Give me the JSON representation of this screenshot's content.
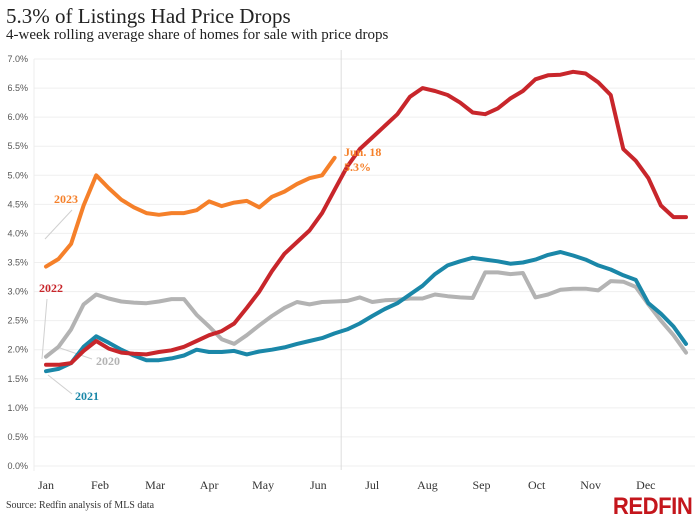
{
  "header": {
    "title": "5.3% of Listings Had Price Drops",
    "subtitle": "4-week rolling average share of homes for sale with price drops"
  },
  "footer": {
    "source": "Source: Redfin analysis of MLS data",
    "logo": "REDFIN"
  },
  "chart_data": {
    "type": "line",
    "title": "5.3% of Listings Had Price Drops",
    "subtitle": "4-week rolling average share of homes for sale with price drops",
    "xlabel": "",
    "ylabel": "",
    "x_unit": "week of year",
    "xlim": [
      0,
      51
    ],
    "ylim": [
      0,
      7
    ],
    "grid": true,
    "y_ticks": [
      0,
      0.5,
      1,
      1.5,
      2,
      2.5,
      3,
      3.5,
      4,
      4.5,
      5,
      5.5,
      6,
      6.5,
      7
    ],
    "y_tick_labels": [
      "0.0%",
      "0.5%",
      "1.0%",
      "1.5%",
      "2.0%",
      "2.5%",
      "3.0%",
      "3.5%",
      "4.0%",
      "4.5%",
      "5.0%",
      "5.5%",
      "6.0%",
      "6.5%",
      "7.0%"
    ],
    "x_ticks": [
      0,
      4.3,
      8.7,
      13,
      17.3,
      21.7,
      26,
      30.4,
      34.7,
      39.1,
      43.4,
      47.8
    ],
    "x_tick_labels": [
      "Jan",
      "Feb",
      "Mar",
      "Apr",
      "May",
      "Jun",
      "Jul",
      "Aug",
      "Sep",
      "Oct",
      "Nov",
      "Dec"
    ],
    "reference_line": {
      "x": 24,
      "label": "Jun. 18"
    },
    "annotation": {
      "series": "2023",
      "x": 23.5,
      "lines": [
        "Jun. 18",
        "5.3%"
      ]
    },
    "legend": "inline-labels",
    "series": [
      {
        "name": "2020",
        "color": "#b3b3b3",
        "label_pos": "left-middle",
        "x": [
          0,
          1,
          2,
          3,
          4,
          5,
          6,
          7,
          8,
          9,
          10,
          11,
          12,
          13,
          14,
          15,
          16,
          17,
          18,
          19,
          20,
          21,
          22,
          23,
          24,
          25,
          26,
          27,
          28,
          29,
          30,
          31,
          32,
          33,
          34,
          35,
          36,
          37,
          38,
          39,
          40,
          41,
          42,
          43,
          44,
          45,
          46,
          47,
          48,
          49,
          50,
          51
        ],
        "values": [
          1.88,
          2.05,
          2.35,
          2.78,
          2.95,
          2.88,
          2.83,
          2.81,
          2.8,
          2.83,
          2.87,
          2.87,
          2.6,
          2.4,
          2.18,
          2.1,
          2.25,
          2.42,
          2.58,
          2.72,
          2.82,
          2.78,
          2.82,
          2.83,
          2.84,
          2.9,
          2.82,
          2.85,
          2.86,
          2.88,
          2.88,
          2.95,
          2.92,
          2.9,
          2.89,
          3.33,
          3.33,
          3.3,
          3.32,
          2.9,
          2.95,
          3.03,
          3.05,
          3.05,
          3.02,
          3.18,
          3.17,
          3.08,
          2.78,
          2.5,
          2.25,
          1.95
        ]
      },
      {
        "name": "2021",
        "color": "#1a87a8",
        "label_pos": "bottom-left",
        "x": [
          0,
          1,
          2,
          3,
          4,
          5,
          6,
          7,
          8,
          9,
          10,
          11,
          12,
          13,
          14,
          15,
          16,
          17,
          18,
          19,
          20,
          21,
          22,
          23,
          24,
          25,
          26,
          27,
          28,
          29,
          30,
          31,
          32,
          33,
          34,
          35,
          36,
          37,
          38,
          39,
          40,
          41,
          42,
          43,
          44,
          45,
          46,
          47,
          48,
          49,
          50,
          51
        ],
        "values": [
          1.63,
          1.67,
          1.77,
          2.05,
          2.23,
          2.12,
          2.0,
          1.9,
          1.82,
          1.82,
          1.85,
          1.9,
          2.0,
          1.96,
          1.96,
          1.98,
          1.92,
          1.97,
          2.0,
          2.04,
          2.1,
          2.15,
          2.2,
          2.28,
          2.35,
          2.45,
          2.58,
          2.7,
          2.8,
          2.95,
          3.1,
          3.3,
          3.45,
          3.52,
          3.58,
          3.55,
          3.52,
          3.48,
          3.5,
          3.55,
          3.63,
          3.68,
          3.62,
          3.55,
          3.45,
          3.38,
          3.28,
          3.2,
          2.8,
          2.62,
          2.4,
          2.1
        ]
      },
      {
        "name": "2022",
        "color": "#c8262b",
        "label_pos": "left-upper",
        "x": [
          0,
          1,
          2,
          3,
          4,
          5,
          6,
          7,
          8,
          9,
          10,
          11,
          12,
          13,
          14,
          15,
          16,
          17,
          18,
          19,
          20,
          21,
          22,
          23,
          24,
          25,
          26,
          27,
          28,
          29,
          30,
          31,
          32,
          33,
          34,
          35,
          36,
          37,
          38,
          39,
          40,
          41,
          42,
          43,
          44,
          45,
          46,
          47,
          48,
          49,
          50,
          51
        ],
        "values": [
          1.74,
          1.74,
          1.77,
          1.98,
          2.15,
          2.02,
          1.95,
          1.93,
          1.92,
          1.96,
          1.99,
          2.05,
          2.15,
          2.25,
          2.32,
          2.45,
          2.72,
          3.0,
          3.35,
          3.65,
          3.85,
          4.05,
          4.35,
          4.75,
          5.15,
          5.45,
          5.65,
          5.85,
          6.05,
          6.35,
          6.5,
          6.45,
          6.38,
          6.25,
          6.08,
          6.05,
          6.15,
          6.32,
          6.45,
          6.65,
          6.72,
          6.73,
          6.78,
          6.75,
          6.6,
          6.38,
          5.45,
          5.25,
          4.95,
          4.48,
          4.28,
          4.28
        ]
      },
      {
        "name": "2023",
        "color": "#f5802a",
        "label_pos": "left-upper",
        "x": [
          0,
          1,
          2,
          3,
          4,
          5,
          6,
          7,
          8,
          9,
          10,
          11,
          12,
          13,
          14,
          15,
          16,
          17,
          18,
          19,
          20,
          21,
          22,
          23
        ],
        "values": [
          3.43,
          3.56,
          3.82,
          4.48,
          5.0,
          4.78,
          4.58,
          4.45,
          4.35,
          4.32,
          4.35,
          4.35,
          4.4,
          4.55,
          4.47,
          4.53,
          4.56,
          4.45,
          4.63,
          4.72,
          4.85,
          4.95,
          5.0,
          5.3
        ]
      }
    ]
  }
}
